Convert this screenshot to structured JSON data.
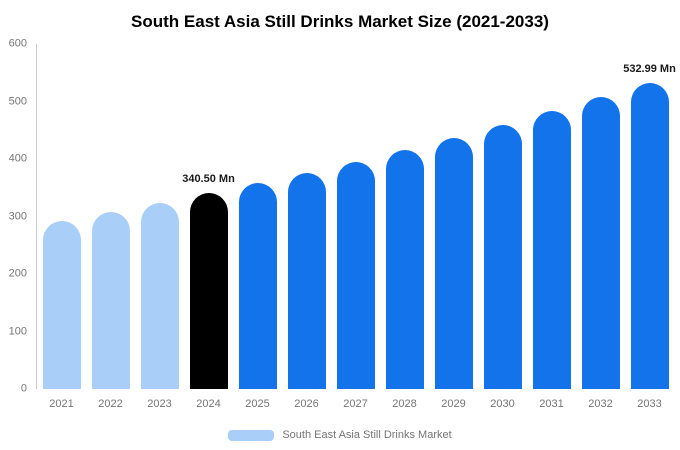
{
  "chart_data": {
    "type": "bar",
    "title": "South East Asia Still Drinks Market Size (2021-2033)",
    "categories": [
      "2021",
      "2022",
      "2023",
      "2024",
      "2025",
      "2026",
      "2027",
      "2028",
      "2029",
      "2030",
      "2031",
      "2032",
      "2033"
    ],
    "values": [
      293,
      308,
      324,
      340.5,
      358,
      376,
      395,
      416,
      437,
      459,
      483,
      507,
      532.99
    ],
    "bar_colors": [
      "#A9CEF7",
      "#A9CEF7",
      "#A9CEF7",
      "#000000",
      "#1273EB",
      "#1273EB",
      "#1273EB",
      "#1273EB",
      "#1273EB",
      "#1273EB",
      "#1273EB",
      "#1273EB",
      "#1273EB"
    ],
    "data_labels": [
      "",
      "",
      "",
      "340.50 Mn",
      "",
      "",
      "",
      "",
      "",
      "",
      "",
      "",
      "532.99 Mn"
    ],
    "xlabel": "",
    "ylabel": "",
    "ylim": [
      0,
      600
    ],
    "yticks": [
      0,
      100,
      200,
      300,
      400,
      500,
      600
    ],
    "grid": false,
    "legend_position": "bottom"
  },
  "legend": {
    "label": "South East Asia Still Drinks Market",
    "color": "#A9CEF7"
  }
}
